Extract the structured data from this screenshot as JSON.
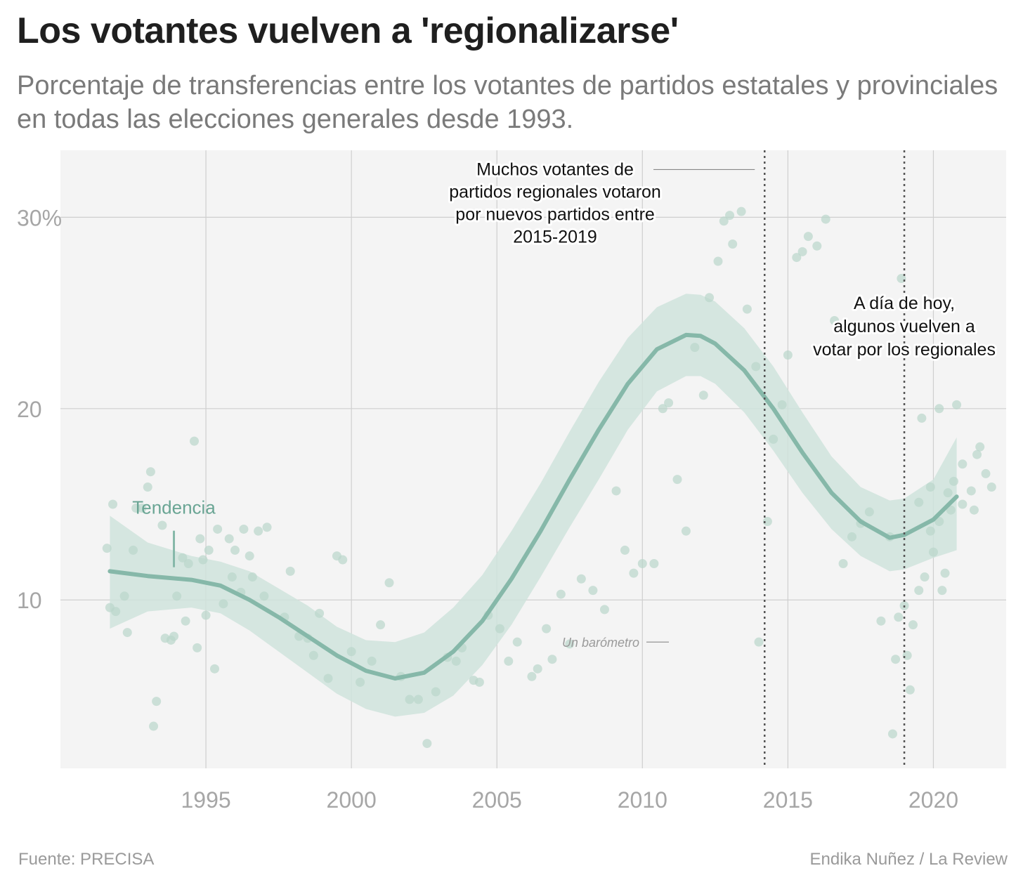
{
  "header": {
    "title": "Los votantes vuelven a 'regionalizarse'",
    "subtitle": "Porcentaje de transferencias entre los votantes de partidos estatales y provinciales en todas las elecciones generales desde 1993."
  },
  "footer": {
    "source": "Fuente: PRECISA",
    "credit": "Endika Nuñez / La Review"
  },
  "colors": {
    "panel": "#f4f4f4",
    "grid": "#cfcfcf",
    "point": "#b9d6cb",
    "trend": "#86b8a9",
    "band": "#cfe3dc",
    "vline": "#555555",
    "axis_text": "#a6a6a6",
    "annotation": "#111111",
    "trend_label": "#6aa594"
  },
  "chart_data": {
    "type": "scatter",
    "xlim": [
      1990,
      2022.5
    ],
    "ylim": [
      1.2,
      33.5
    ],
    "x_ticks": [
      {
        "value": 1995,
        "label": "1995"
      },
      {
        "value": 2000,
        "label": "2000"
      },
      {
        "value": 2005,
        "label": "2005"
      },
      {
        "value": 2010,
        "label": "2010"
      },
      {
        "value": 2015,
        "label": "2015"
      },
      {
        "value": 2020,
        "label": "2020"
      }
    ],
    "y_ticks": [
      {
        "value": 10,
        "label": "10"
      },
      {
        "value": 20,
        "label": "20"
      },
      {
        "value": 30,
        "label": "30%"
      }
    ],
    "grid": true,
    "legend": "none",
    "points": [
      [
        1991.6,
        12.7
      ],
      [
        1991.7,
        9.6
      ],
      [
        1991.8,
        15.0
      ],
      [
        1991.9,
        9.4
      ],
      [
        1992.2,
        10.2
      ],
      [
        1992.3,
        8.3
      ],
      [
        1992.5,
        12.6
      ],
      [
        1992.6,
        14.8
      ],
      [
        1992.8,
        14.8
      ],
      [
        1993.0,
        15.9
      ],
      [
        1993.1,
        16.7
      ],
      [
        1993.2,
        3.4
      ],
      [
        1993.3,
        4.7
      ],
      [
        1993.5,
        13.9
      ],
      [
        1993.6,
        8.0
      ],
      [
        1993.8,
        7.9
      ],
      [
        1993.9,
        8.1
      ],
      [
        1994.0,
        10.2
      ],
      [
        1994.2,
        12.2
      ],
      [
        1994.3,
        8.9
      ],
      [
        1994.4,
        11.9
      ],
      [
        1994.6,
        18.3
      ],
      [
        1994.7,
        7.5
      ],
      [
        1994.8,
        13.2
      ],
      [
        1994.9,
        12.1
      ],
      [
        1995.0,
        9.2
      ],
      [
        1995.1,
        12.6
      ],
      [
        1995.3,
        6.4
      ],
      [
        1995.4,
        13.7
      ],
      [
        1995.6,
        9.8
      ],
      [
        1995.8,
        13.2
      ],
      [
        1995.9,
        11.2
      ],
      [
        1996.0,
        12.6
      ],
      [
        1996.2,
        10.4
      ],
      [
        1996.3,
        13.7
      ],
      [
        1996.5,
        12.3
      ],
      [
        1996.6,
        11.2
      ],
      [
        1996.8,
        13.6
      ],
      [
        1997.0,
        10.2
      ],
      [
        1997.1,
        13.8
      ],
      [
        1997.7,
        9.1
      ],
      [
        1997.9,
        11.5
      ],
      [
        1998.2,
        8.1
      ],
      [
        1998.5,
        8.0
      ],
      [
        1998.7,
        7.1
      ],
      [
        1998.9,
        9.3
      ],
      [
        1999.2,
        5.9
      ],
      [
        1999.5,
        12.3
      ],
      [
        1999.7,
        12.1
      ],
      [
        2000.0,
        7.3
      ],
      [
        2000.3,
        5.7
      ],
      [
        2000.7,
        6.8
      ],
      [
        2001.0,
        8.7
      ],
      [
        2001.3,
        10.9
      ],
      [
        2001.7,
        6.0
      ],
      [
        2002.0,
        4.8
      ],
      [
        2002.3,
        4.8
      ],
      [
        2002.6,
        2.5
      ],
      [
        2002.9,
        5.2
      ],
      [
        2003.3,
        7.0
      ],
      [
        2003.6,
        6.8
      ],
      [
        2003.8,
        7.5
      ],
      [
        2004.2,
        5.8
      ],
      [
        2004.4,
        5.7
      ],
      [
        2004.7,
        9.2
      ],
      [
        2005.1,
        8.5
      ],
      [
        2005.4,
        6.8
      ],
      [
        2005.7,
        7.8
      ],
      [
        2006.2,
        6.0
      ],
      [
        2006.4,
        6.4
      ],
      [
        2006.7,
        8.5
      ],
      [
        2006.9,
        6.9
      ],
      [
        2007.2,
        10.3
      ],
      [
        2007.5,
        7.7
      ],
      [
        2007.9,
        11.1
      ],
      [
        2008.3,
        10.5
      ],
      [
        2008.7,
        9.5
      ],
      [
        2009.1,
        15.7
      ],
      [
        2009.4,
        12.6
      ],
      [
        2009.7,
        11.4
      ],
      [
        2010.0,
        11.9
      ],
      [
        2010.4,
        11.9
      ],
      [
        2010.7,
        20.0
      ],
      [
        2010.9,
        20.3
      ],
      [
        2011.2,
        16.3
      ],
      [
        2011.5,
        13.6
      ],
      [
        2011.8,
        23.2
      ],
      [
        2012.1,
        20.7
      ],
      [
        2012.3,
        25.8
      ],
      [
        2012.6,
        27.7
      ],
      [
        2012.8,
        29.8
      ],
      [
        2013.0,
        30.1
      ],
      [
        2013.1,
        28.6
      ],
      [
        2013.4,
        30.3
      ],
      [
        2013.6,
        25.2
      ],
      [
        2013.9,
        22.2
      ],
      [
        2014.0,
        7.8
      ],
      [
        2014.3,
        14.1
      ],
      [
        2014.5,
        18.4
      ],
      [
        2014.8,
        20.2
      ],
      [
        2015.0,
        22.8
      ],
      [
        2015.3,
        27.9
      ],
      [
        2015.5,
        28.2
      ],
      [
        2015.7,
        29.0
      ],
      [
        2016.0,
        28.5
      ],
      [
        2016.3,
        29.9
      ],
      [
        2016.6,
        24.6
      ],
      [
        2016.9,
        11.9
      ],
      [
        2017.2,
        13.3
      ],
      [
        2017.5,
        14.0
      ],
      [
        2017.8,
        14.6
      ],
      [
        2018.2,
        8.9
      ],
      [
        2018.5,
        13.3
      ],
      [
        2018.9,
        26.8
      ],
      [
        2019.5,
        15.1
      ],
      [
        2019.6,
        19.5
      ],
      [
        2019.9,
        15.9
      ],
      [
        2020.2,
        14.1
      ],
      [
        2020.5,
        15.6
      ],
      [
        2020.7,
        16.2
      ],
      [
        2021.0,
        17.1
      ],
      [
        2021.3,
        15.7
      ],
      [
        2021.4,
        14.7
      ],
      [
        2021.5,
        17.6
      ],
      [
        2021.6,
        18.0
      ],
      [
        2021.8,
        16.6
      ],
      [
        2022.0,
        15.9
      ],
      [
        2018.6,
        3.0
      ],
      [
        2018.7,
        6.9
      ],
      [
        2018.8,
        9.1
      ],
      [
        2019.0,
        9.7
      ],
      [
        2019.1,
        7.1
      ],
      [
        2019.2,
        5.3
      ],
      [
        2019.3,
        8.7
      ],
      [
        2019.5,
        10.5
      ],
      [
        2019.7,
        11.2
      ],
      [
        2019.9,
        13.6
      ],
      [
        2020.0,
        12.5
      ],
      [
        2020.2,
        20.0
      ],
      [
        2020.3,
        10.5
      ],
      [
        2020.4,
        11.4
      ],
      [
        2020.6,
        14.7
      ],
      [
        2020.8,
        20.2
      ],
      [
        2021.0,
        15.0
      ]
    ],
    "trend": [
      [
        1991.7,
        11.5
      ],
      [
        1993.0,
        11.25
      ],
      [
        1994.5,
        11.05
      ],
      [
        1995.5,
        10.75
      ],
      [
        1996.5,
        10.0
      ],
      [
        1997.5,
        9.1
      ],
      [
        1998.5,
        8.1
      ],
      [
        1999.5,
        7.1
      ],
      [
        2000.5,
        6.3
      ],
      [
        2001.5,
        5.9
      ],
      [
        2002.5,
        6.2
      ],
      [
        2003.5,
        7.3
      ],
      [
        2004.5,
        8.9
      ],
      [
        2005.5,
        11.1
      ],
      [
        2006.5,
        13.6
      ],
      [
        2007.5,
        16.3
      ],
      [
        2008.5,
        18.9
      ],
      [
        2009.5,
        21.3
      ],
      [
        2010.5,
        23.1
      ],
      [
        2011.5,
        23.85
      ],
      [
        2012.0,
        23.8
      ],
      [
        2012.5,
        23.4
      ],
      [
        2013.5,
        22.0
      ],
      [
        2014.5,
        20.0
      ],
      [
        2015.5,
        17.7
      ],
      [
        2016.5,
        15.6
      ],
      [
        2017.5,
        14.1
      ],
      [
        2018.5,
        13.25
      ],
      [
        2019.0,
        13.4
      ],
      [
        2020.0,
        14.2
      ],
      [
        2020.8,
        15.4
      ]
    ],
    "band_upper": [
      [
        1991.7,
        14.4
      ],
      [
        1993.0,
        13.0
      ],
      [
        1994.5,
        12.3
      ],
      [
        1995.5,
        12.0
      ],
      [
        1996.5,
        11.5
      ],
      [
        1997.5,
        10.6
      ],
      [
        1998.5,
        9.7
      ],
      [
        1999.5,
        8.6
      ],
      [
        2000.5,
        7.9
      ],
      [
        2001.5,
        7.8
      ],
      [
        2002.5,
        8.3
      ],
      [
        2003.5,
        9.6
      ],
      [
        2004.5,
        11.3
      ],
      [
        2005.5,
        13.6
      ],
      [
        2006.5,
        16.1
      ],
      [
        2007.5,
        18.8
      ],
      [
        2008.5,
        21.4
      ],
      [
        2009.5,
        23.7
      ],
      [
        2010.5,
        25.3
      ],
      [
        2011.5,
        26.0
      ],
      [
        2012.0,
        25.95
      ],
      [
        2012.5,
        25.6
      ],
      [
        2013.5,
        24.2
      ],
      [
        2014.5,
        22.2
      ],
      [
        2015.5,
        19.8
      ],
      [
        2016.5,
        17.5
      ],
      [
        2017.5,
        15.9
      ],
      [
        2018.5,
        15.2
      ],
      [
        2019.0,
        15.3
      ],
      [
        2020.0,
        16.3
      ],
      [
        2020.8,
        18.5
      ]
    ],
    "band_lower": [
      [
        1991.7,
        8.5
      ],
      [
        1993.0,
        9.4
      ],
      [
        1994.5,
        9.6
      ],
      [
        1995.5,
        9.3
      ],
      [
        1996.5,
        8.4
      ],
      [
        1997.5,
        7.3
      ],
      [
        1998.5,
        6.2
      ],
      [
        1999.5,
        5.1
      ],
      [
        2000.5,
        4.3
      ],
      [
        2001.5,
        3.9
      ],
      [
        2002.5,
        4.1
      ],
      [
        2003.5,
        5.0
      ],
      [
        2004.5,
        6.6
      ],
      [
        2005.5,
        8.7
      ],
      [
        2006.5,
        11.2
      ],
      [
        2007.5,
        13.8
      ],
      [
        2008.5,
        16.3
      ],
      [
        2009.5,
        18.9
      ],
      [
        2010.5,
        20.9
      ],
      [
        2011.5,
        21.7
      ],
      [
        2012.0,
        21.7
      ],
      [
        2012.5,
        21.3
      ],
      [
        2013.5,
        19.8
      ],
      [
        2014.5,
        17.8
      ],
      [
        2015.5,
        15.6
      ],
      [
        2016.5,
        13.7
      ],
      [
        2017.5,
        12.3
      ],
      [
        2018.5,
        11.5
      ],
      [
        2019.0,
        11.6
      ],
      [
        2020.0,
        12.2
      ],
      [
        2020.8,
        12.6
      ]
    ],
    "vlines": [
      2014.2,
      2019.0
    ],
    "annotations": {
      "tendencia": {
        "text": "Tendencia",
        "x": 1993.9,
        "y": 14.5
      },
      "barometro": {
        "text": "Un barómetro",
        "x": 2011.2,
        "y": 7.8
      },
      "nuevos": {
        "lines": [
          "Muchos votantes de",
          "partidos regionales votaron",
          "por nuevos partidos entre",
          "2015-2019"
        ],
        "x": 2007.0,
        "y": 32.2
      },
      "hoy": {
        "lines": [
          "A día de hoy,",
          "algunos vuelven a",
          "votar por los regionales"
        ],
        "x": 2019.0,
        "y": 25.2
      }
    }
  }
}
